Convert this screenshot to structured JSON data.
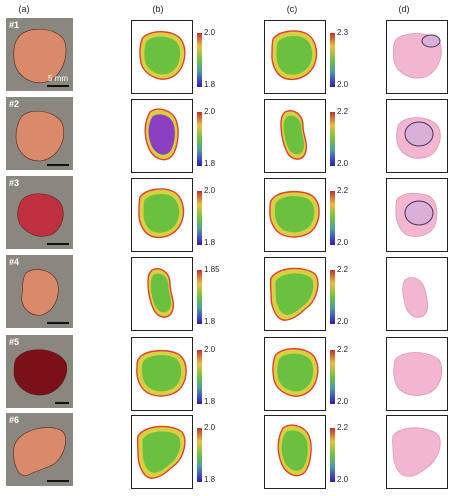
{
  "columns": {
    "a": "(a)",
    "b": "(b)",
    "c": "(c)",
    "d": "(d)"
  },
  "scale_label": "5 mm",
  "rows": [
    {
      "label": "#1",
      "b_max": "2.0",
      "b_min": "1.8",
      "c_max": "2.3",
      "c_min": "2.0"
    },
    {
      "label": "#2",
      "b_max": "2.0",
      "b_min": "1.8",
      "c_max": "2.2",
      "c_min": "2.0"
    },
    {
      "label": "#3",
      "b_max": "2.0",
      "b_min": "1.8",
      "c_max": "2.2",
      "c_min": "2.0"
    },
    {
      "label": "#4",
      "b_max": "1.85",
      "b_min": "1.8",
      "c_max": "2.2",
      "c_min": "2.0"
    },
    {
      "label": "#5",
      "b_max": "2.0",
      "b_min": "1.8",
      "c_max": "2.2",
      "c_min": "2.0"
    },
    {
      "label": "#6",
      "b_max": "2.0",
      "b_min": "1.8",
      "c_max": "2.2",
      "c_min": "2.0"
    }
  ],
  "colors": {
    "tissue_light": "#d98a6a",
    "tissue_dark": "#7a1018",
    "map_green": "#6cc040",
    "map_yellow": "#d8d040",
    "map_red": "#e04030",
    "map_purple": "#8a40c0",
    "he_pink": "#f2b6cf",
    "he_outline": "#4a3060"
  }
}
